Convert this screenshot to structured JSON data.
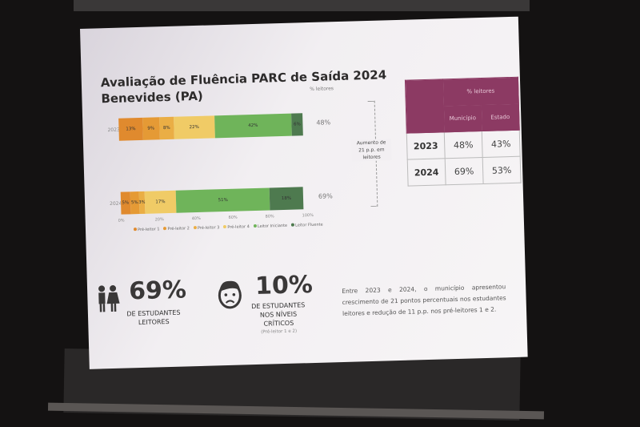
{
  "slide": {
    "title_line1": "Avaliação de Fluência PARC de Saída 2024",
    "title_line2": "Benevides (PA)",
    "readers_header": "% leitores",
    "bracket_note": [
      "Aumento de",
      "21 p.p. em",
      "leitores"
    ],
    "table": {
      "header": "% leitores",
      "col1": "Município",
      "col2": "Estado",
      "rows": [
        {
          "year": "2023",
          "municipio": "48%",
          "estado": "43%"
        },
        {
          "year": "2024",
          "municipio": "69%",
          "estado": "53%"
        }
      ]
    },
    "stat1": {
      "value": "69%",
      "caption_line1": "DE ESTUDANTES",
      "caption_line2": "LEITORES"
    },
    "stat2": {
      "value": "10%",
      "caption_line1": "DE ESTUDANTES",
      "caption_line2": "NOS NÍVEIS",
      "caption_line3": "CRÍTICOS",
      "note": "(Pré-leitor 1 e 2)"
    },
    "paragraph": "Entre 2023 e 2024, o município apresentou crescimento de 21 pontos percentuais nos estudantes leitores e redução de 11 p.p. nos pré-leitores 1 e 2."
  },
  "chart_data": {
    "type": "bar",
    "orientation": "horizontal-stacked",
    "categories": [
      "2023",
      "2024"
    ],
    "series": [
      {
        "name": "Pré-leitor 1",
        "values": [
          13,
          5
        ],
        "color": "#e08a2e"
      },
      {
        "name": "Pré-leitor 2",
        "values": [
          9,
          5
        ],
        "color": "#e59a35"
      },
      {
        "name": "Pré-leitor 3",
        "values": [
          8,
          3
        ],
        "color": "#eaae45"
      },
      {
        "name": "Pré-leitor 4",
        "values": [
          22,
          17
        ],
        "color": "#f0cb66"
      },
      {
        "name": "Leitor Iniciante",
        "values": [
          42,
          51
        ],
        "color": "#6fb45a"
      },
      {
        "name": "Leitor Fluente",
        "values": [
          6,
          18
        ],
        "color": "#4e7a4f"
      }
    ],
    "readers_total": [
      "48%",
      "69%"
    ],
    "xticks": [
      "0%",
      "20%",
      "40%",
      "60%",
      "80%",
      "100%"
    ],
    "xlim": [
      0,
      100
    ],
    "legend": "bottom"
  }
}
